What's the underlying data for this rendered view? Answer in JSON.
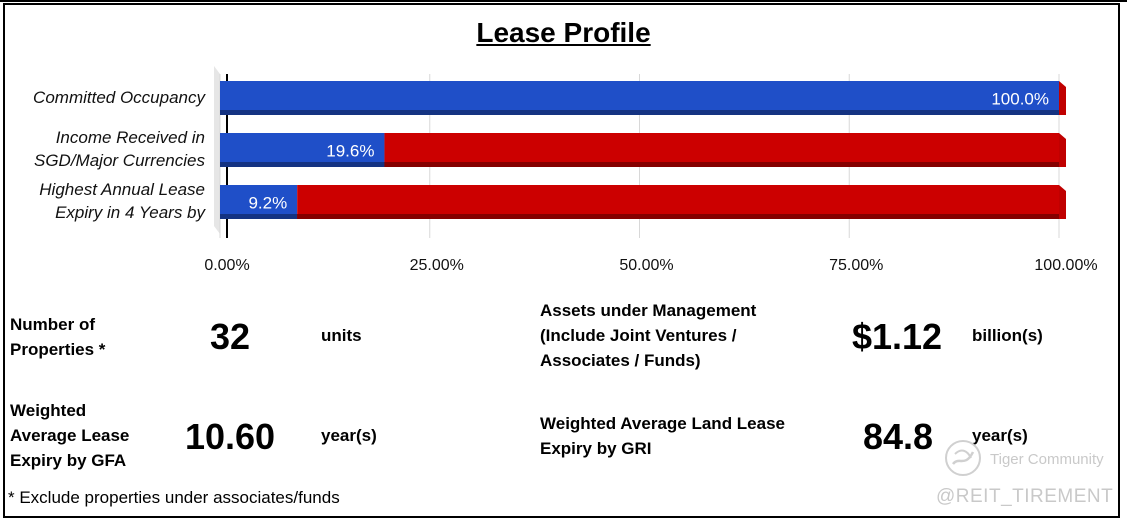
{
  "title": "Lease Profile",
  "chart_data": {
    "type": "bar",
    "orientation": "horizontal",
    "stacked": true,
    "categories": [
      [
        "Committed Occupancy"
      ],
      [
        "Income Received in",
        "SGD/Major Currencies"
      ],
      [
        "Highest Annual Lease",
        "Expiry in 4 Years by"
      ]
    ],
    "series": [
      {
        "values": [
          100.0,
          19.6,
          9.2
        ],
        "labels": [
          "100.0%",
          "19.6%",
          "9.2%"
        ],
        "color": "#1f4fc8"
      },
      {
        "values": [
          0.0,
          80.4,
          90.8
        ],
        "color": "#cc0000"
      }
    ],
    "xlim": [
      0,
      100
    ],
    "xticks": [
      0,
      25,
      50,
      75,
      100
    ],
    "xtick_labels": [
      "0.00%",
      "25.00%",
      "50.00%",
      "75.00%",
      "100.00%"
    ],
    "xlabel": "",
    "ylabel": "",
    "grid": true,
    "style": "3d"
  },
  "stats": {
    "properties": {
      "label": [
        "Number of",
        "Properties *"
      ],
      "value": "32",
      "unit": "units"
    },
    "aum": {
      "label": [
        "Assets under Management",
        "(Include Joint Ventures /",
        "Associates / Funds)"
      ],
      "value": "$1.12",
      "unit": "billion(s)"
    },
    "wale": {
      "label": [
        "Weighted",
        "Average Lease",
        "Expiry by GFA"
      ],
      "value": "10.60",
      "unit": "year(s)"
    },
    "land_lease": {
      "label": [
        "Weighted Average Land Lease",
        "Expiry by GRI"
      ],
      "value": "84.8",
      "unit": "year(s)"
    }
  },
  "footnote": "* Exclude properties under associates/funds",
  "watermark": {
    "community": "Tiger Community",
    "handle": "@REIT_TIREMENT",
    "icon": "tiger-community-logo"
  }
}
